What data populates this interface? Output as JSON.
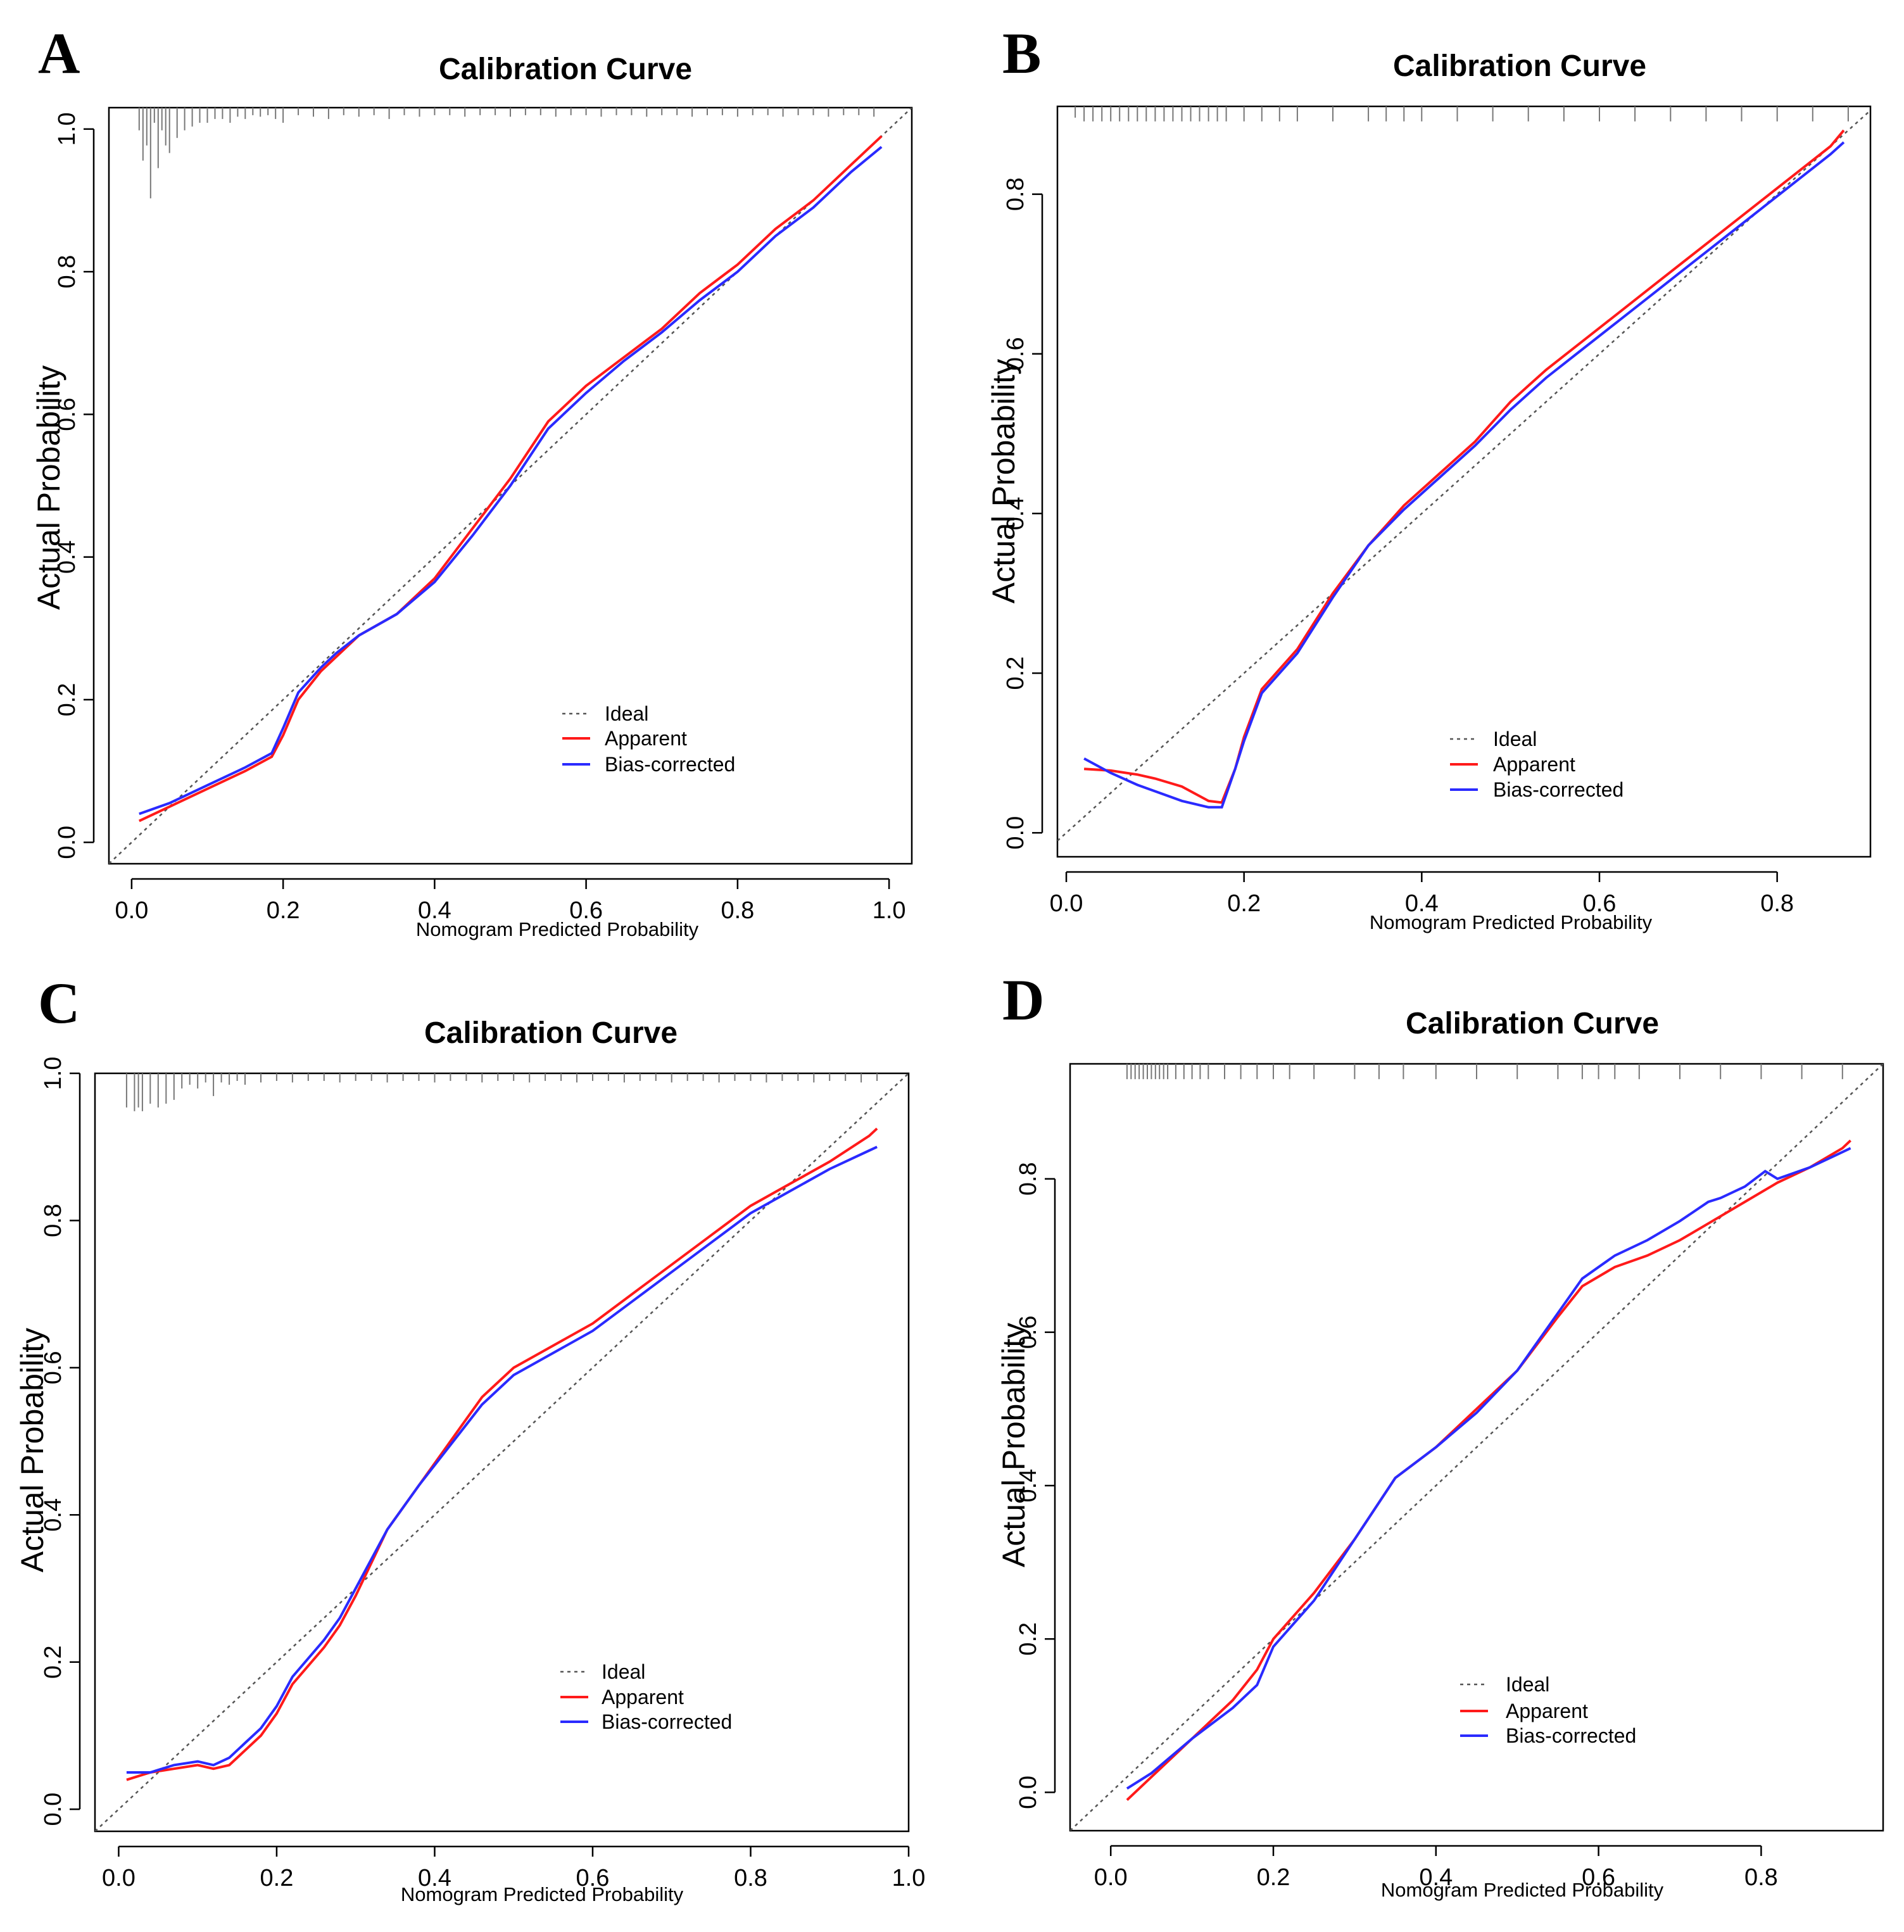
{
  "chart_data": [
    {
      "type": "line",
      "panel": "A",
      "title": "Calibration Curve",
      "xlabel": "Nomogram Predicted Probability",
      "ylabel": "Actual Probability",
      "xlim": [
        -0.03,
        1.03
      ],
      "ylim": [
        -0.03,
        1.03
      ],
      "xticks": [
        0.0,
        0.2,
        0.4,
        0.6,
        0.8,
        1.0
      ],
      "xtick_labels": [
        "0.0",
        "0.2",
        "0.4",
        "0.6",
        "0.8",
        "1.0"
      ],
      "yticks": [
        0.0,
        0.2,
        0.4,
        0.6,
        0.8,
        1.0
      ],
      "ytick_labels": [
        "0.0",
        "0.2",
        "0.4",
        "0.6",
        "0.8",
        "1.0"
      ],
      "legend": [
        "Ideal",
        "Apparent",
        "Bias-corrected"
      ],
      "legend_position": "bottom-right",
      "series": [
        {
          "name": "Ideal",
          "x": [
            -0.03,
            1.03
          ],
          "y": [
            -0.03,
            1.03
          ]
        },
        {
          "name": "Apparent",
          "x": [
            0.01,
            0.05,
            0.1,
            0.15,
            0.185,
            0.2,
            0.22,
            0.25,
            0.27,
            0.3,
            0.35,
            0.4,
            0.45,
            0.5,
            0.55,
            0.6,
            0.65,
            0.7,
            0.75,
            0.8,
            0.85,
            0.9,
            0.95,
            0.99
          ],
          "y": [
            0.03,
            0.05,
            0.075,
            0.1,
            0.12,
            0.15,
            0.2,
            0.24,
            0.26,
            0.29,
            0.32,
            0.37,
            0.44,
            0.51,
            0.59,
            0.64,
            0.68,
            0.72,
            0.77,
            0.81,
            0.86,
            0.9,
            0.95,
            0.99
          ]
        },
        {
          "name": "Bias-corrected",
          "x": [
            0.01,
            0.05,
            0.1,
            0.15,
            0.185,
            0.2,
            0.22,
            0.25,
            0.27,
            0.3,
            0.35,
            0.4,
            0.45,
            0.5,
            0.55,
            0.6,
            0.65,
            0.7,
            0.75,
            0.8,
            0.85,
            0.9,
            0.95,
            0.99
          ],
          "y": [
            0.04,
            0.055,
            0.08,
            0.105,
            0.125,
            0.16,
            0.21,
            0.245,
            0.265,
            0.29,
            0.32,
            0.365,
            0.43,
            0.5,
            0.58,
            0.63,
            0.675,
            0.715,
            0.76,
            0.8,
            0.85,
            0.89,
            0.94,
            0.975
          ]
        }
      ],
      "rug_x": [
        0.01,
        0.015,
        0.02,
        0.025,
        0.03,
        0.035,
        0.04,
        0.045,
        0.05,
        0.06,
        0.07,
        0.08,
        0.09,
        0.1,
        0.11,
        0.12,
        0.13,
        0.14,
        0.15,
        0.16,
        0.17,
        0.18,
        0.19,
        0.2,
        0.22,
        0.24,
        0.26,
        0.28,
        0.3,
        0.32,
        0.34,
        0.36,
        0.38,
        0.4,
        0.42,
        0.44,
        0.46,
        0.48,
        0.5,
        0.52,
        0.54,
        0.56,
        0.58,
        0.6,
        0.62,
        0.64,
        0.66,
        0.68,
        0.7,
        0.72,
        0.74,
        0.76,
        0.78,
        0.8,
        0.82,
        0.84,
        0.86,
        0.88,
        0.9,
        0.92,
        0.94,
        0.96,
        0.98
      ],
      "rug_len": [
        0.03,
        0.07,
        0.05,
        0.12,
        0.02,
        0.08,
        0.03,
        0.05,
        0.06,
        0.04,
        0.03,
        0.025,
        0.02,
        0.02,
        0.015,
        0.015,
        0.02,
        0.012,
        0.015,
        0.01,
        0.012,
        0.01,
        0.015,
        0.02,
        0.01,
        0.012,
        0.015,
        0.01,
        0.012,
        0.01,
        0.015,
        0.01,
        0.012,
        0.01,
        0.01,
        0.012,
        0.01,
        0.01,
        0.012,
        0.01,
        0.01,
        0.012,
        0.01,
        0.01,
        0.012,
        0.01,
        0.01,
        0.012,
        0.01,
        0.01,
        0.012,
        0.01,
        0.01,
        0.012,
        0.01,
        0.01,
        0.012,
        0.01,
        0.01,
        0.012,
        0.01,
        0.01,
        0.012
      ]
    },
    {
      "type": "line",
      "panel": "B",
      "title": "Calibration Curve",
      "xlabel": "Nomogram Predicted Probability",
      "ylabel": "Actual Probability",
      "xlim": [
        -0.01,
        0.905
      ],
      "ylim": [
        -0.03,
        0.91
      ],
      "xticks": [
        0.0,
        0.2,
        0.4,
        0.6,
        0.8
      ],
      "xtick_labels": [
        "0.0",
        "0.2",
        "0.4",
        "0.6",
        "0.8"
      ],
      "yticks": [
        0.0,
        0.2,
        0.4,
        0.6,
        0.8
      ],
      "ytick_labels": [
        "0.0",
        "0.2",
        "0.4",
        "0.6",
        "0.8"
      ],
      "legend": [
        "Ideal",
        "Apparent",
        "Bias-corrected"
      ],
      "legend_position": "bottom-right",
      "series": [
        {
          "name": "Ideal",
          "x": [
            -0.01,
            0.905
          ],
          "y": [
            -0.01,
            0.905
          ]
        },
        {
          "name": "Apparent",
          "x": [
            0.02,
            0.05,
            0.08,
            0.1,
            0.13,
            0.16,
            0.175,
            0.19,
            0.2,
            0.22,
            0.26,
            0.3,
            0.34,
            0.38,
            0.42,
            0.46,
            0.5,
            0.54,
            0.58,
            0.62,
            0.66,
            0.7,
            0.74,
            0.78,
            0.82,
            0.86,
            0.875
          ],
          "y": [
            0.08,
            0.078,
            0.073,
            0.068,
            0.058,
            0.04,
            0.038,
            0.08,
            0.12,
            0.18,
            0.23,
            0.3,
            0.36,
            0.41,
            0.45,
            0.49,
            0.54,
            0.58,
            0.615,
            0.65,
            0.685,
            0.72,
            0.755,
            0.79,
            0.825,
            0.86,
            0.88
          ]
        },
        {
          "name": "Bias-corrected",
          "x": [
            0.02,
            0.05,
            0.08,
            0.1,
            0.13,
            0.16,
            0.175,
            0.19,
            0.2,
            0.22,
            0.26,
            0.3,
            0.34,
            0.38,
            0.42,
            0.46,
            0.5,
            0.54,
            0.58,
            0.62,
            0.66,
            0.7,
            0.74,
            0.78,
            0.82,
            0.86,
            0.875
          ],
          "y": [
            0.093,
            0.075,
            0.06,
            0.052,
            0.04,
            0.032,
            0.032,
            0.08,
            0.115,
            0.175,
            0.225,
            0.295,
            0.36,
            0.405,
            0.445,
            0.485,
            0.53,
            0.57,
            0.605,
            0.64,
            0.675,
            0.71,
            0.745,
            0.78,
            0.815,
            0.85,
            0.865
          ]
        }
      ],
      "rug_x": [
        0.01,
        0.02,
        0.03,
        0.04,
        0.05,
        0.06,
        0.07,
        0.08,
        0.09,
        0.1,
        0.11,
        0.12,
        0.13,
        0.14,
        0.15,
        0.16,
        0.17,
        0.18,
        0.2,
        0.22,
        0.24,
        0.26,
        0.3,
        0.34,
        0.36,
        0.38,
        0.4,
        0.44,
        0.48,
        0.52,
        0.56,
        0.6,
        0.64,
        0.68,
        0.72,
        0.76,
        0.8,
        0.84,
        0.88
      ],
      "rug_len": [
        0.015,
        0.02,
        0.02,
        0.02,
        0.02,
        0.02,
        0.02,
        0.02,
        0.02,
        0.02,
        0.02,
        0.02,
        0.02,
        0.02,
        0.02,
        0.02,
        0.02,
        0.02,
        0.02,
        0.02,
        0.02,
        0.02,
        0.02,
        0.02,
        0.02,
        0.02,
        0.02,
        0.02,
        0.02,
        0.02,
        0.02,
        0.02,
        0.02,
        0.02,
        0.02,
        0.02,
        0.02,
        0.02,
        0.02
      ]
    },
    {
      "type": "line",
      "panel": "C",
      "title": "Calibration Curve",
      "xlabel": "Nomogram Predicted Probability",
      "ylabel": "Actual Probability",
      "xlim": [
        -0.03,
        1.0
      ],
      "ylim": [
        -0.03,
        1.0
      ],
      "xticks": [
        0.0,
        0.2,
        0.4,
        0.6,
        0.8,
        1.0
      ],
      "xtick_labels": [
        "0.0",
        "0.2",
        "0.4",
        "0.6",
        "0.8",
        "1.0"
      ],
      "yticks": [
        0.0,
        0.2,
        0.4,
        0.6,
        0.8,
        1.0
      ],
      "ytick_labels": [
        "0.0",
        "0.2",
        "0.4",
        "0.6",
        "0.8",
        "1.0"
      ],
      "legend": [
        "Ideal",
        "Apparent",
        "Bias-corrected"
      ],
      "legend_position": "bottom-right",
      "series": [
        {
          "name": "Ideal",
          "x": [
            -0.03,
            1.0
          ],
          "y": [
            -0.03,
            1.0
          ]
        },
        {
          "name": "Apparent",
          "x": [
            0.01,
            0.04,
            0.07,
            0.1,
            0.12,
            0.14,
            0.16,
            0.18,
            0.2,
            0.22,
            0.26,
            0.28,
            0.3,
            0.34,
            0.38,
            0.42,
            0.46,
            0.5,
            0.55,
            0.6,
            0.65,
            0.7,
            0.75,
            0.8,
            0.85,
            0.9,
            0.95,
            0.96
          ],
          "y": [
            0.04,
            0.05,
            0.055,
            0.06,
            0.055,
            0.06,
            0.08,
            0.1,
            0.13,
            0.17,
            0.22,
            0.25,
            0.29,
            0.38,
            0.44,
            0.5,
            0.56,
            0.6,
            0.63,
            0.66,
            0.7,
            0.74,
            0.78,
            0.82,
            0.85,
            0.88,
            0.915,
            0.925
          ]
        },
        {
          "name": "Bias-corrected",
          "x": [
            0.01,
            0.04,
            0.07,
            0.1,
            0.12,
            0.14,
            0.16,
            0.18,
            0.2,
            0.22,
            0.26,
            0.28,
            0.3,
            0.34,
            0.38,
            0.42,
            0.46,
            0.5,
            0.55,
            0.6,
            0.65,
            0.7,
            0.75,
            0.8,
            0.85,
            0.9,
            0.95,
            0.96
          ],
          "y": [
            0.05,
            0.05,
            0.06,
            0.065,
            0.06,
            0.07,
            0.09,
            0.11,
            0.14,
            0.18,
            0.23,
            0.26,
            0.3,
            0.38,
            0.44,
            0.495,
            0.55,
            0.59,
            0.62,
            0.65,
            0.69,
            0.73,
            0.77,
            0.81,
            0.84,
            0.87,
            0.895,
            0.9
          ]
        }
      ],
      "rug_x": [
        0.01,
        0.02,
        0.025,
        0.03,
        0.04,
        0.05,
        0.06,
        0.07,
        0.08,
        0.09,
        0.1,
        0.11,
        0.12,
        0.13,
        0.14,
        0.15,
        0.16,
        0.18,
        0.2,
        0.22,
        0.24,
        0.26,
        0.28,
        0.3,
        0.32,
        0.34,
        0.36,
        0.38,
        0.4,
        0.42,
        0.44,
        0.46,
        0.48,
        0.5,
        0.52,
        0.54,
        0.56,
        0.58,
        0.6,
        0.62,
        0.64,
        0.66,
        0.68,
        0.7,
        0.72,
        0.74,
        0.76,
        0.78,
        0.8,
        0.82,
        0.84,
        0.86,
        0.88,
        0.9,
        0.92,
        0.94,
        0.96
      ],
      "rug_len": [
        0.045,
        0.05,
        0.045,
        0.05,
        0.04,
        0.045,
        0.04,
        0.035,
        0.02,
        0.015,
        0.02,
        0.012,
        0.03,
        0.012,
        0.015,
        0.01,
        0.015,
        0.012,
        0.01,
        0.012,
        0.01,
        0.01,
        0.012,
        0.01,
        0.01,
        0.012,
        0.01,
        0.01,
        0.012,
        0.01,
        0.01,
        0.012,
        0.01,
        0.01,
        0.012,
        0.01,
        0.01,
        0.012,
        0.01,
        0.01,
        0.012,
        0.01,
        0.01,
        0.012,
        0.01,
        0.01,
        0.012,
        0.01,
        0.01,
        0.012,
        0.01,
        0.01,
        0.012,
        0.01,
        0.01,
        0.012,
        0.01
      ]
    },
    {
      "type": "line",
      "panel": "D",
      "title": "Calibration Curve",
      "xlabel": "Nomogram Predicted Probability",
      "ylabel": "Actual Probability",
      "xlim": [
        -0.05,
        0.95
      ],
      "ylim": [
        -0.05,
        0.95
      ],
      "xticks": [
        0.0,
        0.2,
        0.4,
        0.6,
        0.8
      ],
      "xtick_labels": [
        "0.0",
        "0.2",
        "0.4",
        "0.6",
        "0.8"
      ],
      "yticks": [
        0.0,
        0.2,
        0.4,
        0.6,
        0.8
      ],
      "ytick_labels": [
        "0.0",
        "0.2",
        "0.4",
        "0.6",
        "0.8"
      ],
      "legend": [
        "Ideal",
        "Apparent",
        "Bias-corrected"
      ],
      "legend_position": "bottom-right",
      "series": [
        {
          "name": "Ideal",
          "x": [
            -0.05,
            0.95
          ],
          "y": [
            -0.05,
            0.95
          ]
        },
        {
          "name": "Apparent",
          "x": [
            0.02,
            0.05,
            0.1,
            0.15,
            0.18,
            0.2,
            0.25,
            0.3,
            0.35,
            0.4,
            0.45,
            0.5,
            0.55,
            0.58,
            0.62,
            0.66,
            0.7,
            0.74,
            0.78,
            0.82,
            0.86,
            0.9,
            0.91
          ],
          "y": [
            -0.01,
            0.02,
            0.07,
            0.12,
            0.16,
            0.2,
            0.26,
            0.33,
            0.41,
            0.45,
            0.5,
            0.55,
            0.62,
            0.66,
            0.685,
            0.7,
            0.72,
            0.745,
            0.77,
            0.795,
            0.815,
            0.84,
            0.85
          ]
        },
        {
          "name": "Bias-corrected",
          "x": [
            0.02,
            0.05,
            0.1,
            0.15,
            0.18,
            0.2,
            0.25,
            0.3,
            0.35,
            0.4,
            0.45,
            0.5,
            0.55,
            0.58,
            0.62,
            0.66,
            0.7,
            0.735,
            0.75,
            0.78,
            0.805,
            0.82,
            0.86,
            0.9,
            0.91
          ],
          "y": [
            0.005,
            0.025,
            0.07,
            0.11,
            0.14,
            0.19,
            0.25,
            0.33,
            0.41,
            0.45,
            0.495,
            0.55,
            0.625,
            0.67,
            0.7,
            0.72,
            0.745,
            0.77,
            0.775,
            0.79,
            0.81,
            0.8,
            0.815,
            0.835,
            0.84
          ]
        }
      ],
      "rug_x": [
        0.02,
        0.025,
        0.03,
        0.035,
        0.04,
        0.045,
        0.05,
        0.055,
        0.06,
        0.065,
        0.07,
        0.08,
        0.09,
        0.1,
        0.11,
        0.12,
        0.14,
        0.16,
        0.18,
        0.2,
        0.22,
        0.25,
        0.3,
        0.33,
        0.36,
        0.4,
        0.45,
        0.5,
        0.55,
        0.58,
        0.6,
        0.62,
        0.65,
        0.7,
        0.75,
        0.8,
        0.85,
        0.9
      ],
      "rug_len": [
        0.02,
        0.02,
        0.02,
        0.02,
        0.02,
        0.02,
        0.02,
        0.02,
        0.02,
        0.02,
        0.02,
        0.02,
        0.02,
        0.02,
        0.02,
        0.02,
        0.02,
        0.02,
        0.02,
        0.02,
        0.02,
        0.02,
        0.02,
        0.02,
        0.02,
        0.02,
        0.02,
        0.02,
        0.02,
        0.02,
        0.02,
        0.02,
        0.02,
        0.02,
        0.02,
        0.02,
        0.02,
        0.02
      ]
    }
  ]
}
